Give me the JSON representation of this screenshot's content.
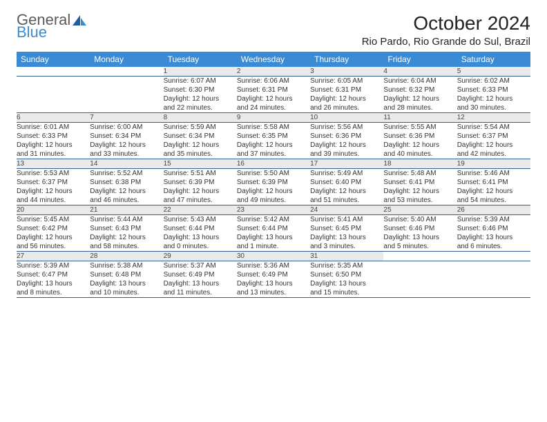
{
  "brand": {
    "part1": "General",
    "part2": "Blue"
  },
  "title": "October 2024",
  "location": "Rio Pardo, Rio Grande do Sul, Brazil",
  "colors": {
    "header_bg": "#3b8bd4",
    "header_text": "#ffffff",
    "daynum_bg": "#eaeaea",
    "border": "#2f5f8f",
    "logo_gray": "#5a5a5a",
    "logo_blue": "#3b8bd4"
  },
  "day_headers": [
    "Sunday",
    "Monday",
    "Tuesday",
    "Wednesday",
    "Thursday",
    "Friday",
    "Saturday"
  ],
  "weeks": [
    [
      {
        "n": "",
        "sr": "",
        "ss": "",
        "d1": "",
        "d2": ""
      },
      {
        "n": "",
        "sr": "",
        "ss": "",
        "d1": "",
        "d2": ""
      },
      {
        "n": "1",
        "sr": "Sunrise: 6:07 AM",
        "ss": "Sunset: 6:30 PM",
        "d1": "Daylight: 12 hours",
        "d2": "and 22 minutes."
      },
      {
        "n": "2",
        "sr": "Sunrise: 6:06 AM",
        "ss": "Sunset: 6:31 PM",
        "d1": "Daylight: 12 hours",
        "d2": "and 24 minutes."
      },
      {
        "n": "3",
        "sr": "Sunrise: 6:05 AM",
        "ss": "Sunset: 6:31 PM",
        "d1": "Daylight: 12 hours",
        "d2": "and 26 minutes."
      },
      {
        "n": "4",
        "sr": "Sunrise: 6:04 AM",
        "ss": "Sunset: 6:32 PM",
        "d1": "Daylight: 12 hours",
        "d2": "and 28 minutes."
      },
      {
        "n": "5",
        "sr": "Sunrise: 6:02 AM",
        "ss": "Sunset: 6:33 PM",
        "d1": "Daylight: 12 hours",
        "d2": "and 30 minutes."
      }
    ],
    [
      {
        "n": "6",
        "sr": "Sunrise: 6:01 AM",
        "ss": "Sunset: 6:33 PM",
        "d1": "Daylight: 12 hours",
        "d2": "and 31 minutes."
      },
      {
        "n": "7",
        "sr": "Sunrise: 6:00 AM",
        "ss": "Sunset: 6:34 PM",
        "d1": "Daylight: 12 hours",
        "d2": "and 33 minutes."
      },
      {
        "n": "8",
        "sr": "Sunrise: 5:59 AM",
        "ss": "Sunset: 6:34 PM",
        "d1": "Daylight: 12 hours",
        "d2": "and 35 minutes."
      },
      {
        "n": "9",
        "sr": "Sunrise: 5:58 AM",
        "ss": "Sunset: 6:35 PM",
        "d1": "Daylight: 12 hours",
        "d2": "and 37 minutes."
      },
      {
        "n": "10",
        "sr": "Sunrise: 5:56 AM",
        "ss": "Sunset: 6:36 PM",
        "d1": "Daylight: 12 hours",
        "d2": "and 39 minutes."
      },
      {
        "n": "11",
        "sr": "Sunrise: 5:55 AM",
        "ss": "Sunset: 6:36 PM",
        "d1": "Daylight: 12 hours",
        "d2": "and 40 minutes."
      },
      {
        "n": "12",
        "sr": "Sunrise: 5:54 AM",
        "ss": "Sunset: 6:37 PM",
        "d1": "Daylight: 12 hours",
        "d2": "and 42 minutes."
      }
    ],
    [
      {
        "n": "13",
        "sr": "Sunrise: 5:53 AM",
        "ss": "Sunset: 6:37 PM",
        "d1": "Daylight: 12 hours",
        "d2": "and 44 minutes."
      },
      {
        "n": "14",
        "sr": "Sunrise: 5:52 AM",
        "ss": "Sunset: 6:38 PM",
        "d1": "Daylight: 12 hours",
        "d2": "and 46 minutes."
      },
      {
        "n": "15",
        "sr": "Sunrise: 5:51 AM",
        "ss": "Sunset: 6:39 PM",
        "d1": "Daylight: 12 hours",
        "d2": "and 47 minutes."
      },
      {
        "n": "16",
        "sr": "Sunrise: 5:50 AM",
        "ss": "Sunset: 6:39 PM",
        "d1": "Daylight: 12 hours",
        "d2": "and 49 minutes."
      },
      {
        "n": "17",
        "sr": "Sunrise: 5:49 AM",
        "ss": "Sunset: 6:40 PM",
        "d1": "Daylight: 12 hours",
        "d2": "and 51 minutes."
      },
      {
        "n": "18",
        "sr": "Sunrise: 5:48 AM",
        "ss": "Sunset: 6:41 PM",
        "d1": "Daylight: 12 hours",
        "d2": "and 53 minutes."
      },
      {
        "n": "19",
        "sr": "Sunrise: 5:46 AM",
        "ss": "Sunset: 6:41 PM",
        "d1": "Daylight: 12 hours",
        "d2": "and 54 minutes."
      }
    ],
    [
      {
        "n": "20",
        "sr": "Sunrise: 5:45 AM",
        "ss": "Sunset: 6:42 PM",
        "d1": "Daylight: 12 hours",
        "d2": "and 56 minutes."
      },
      {
        "n": "21",
        "sr": "Sunrise: 5:44 AM",
        "ss": "Sunset: 6:43 PM",
        "d1": "Daylight: 12 hours",
        "d2": "and 58 minutes."
      },
      {
        "n": "22",
        "sr": "Sunrise: 5:43 AM",
        "ss": "Sunset: 6:44 PM",
        "d1": "Daylight: 13 hours",
        "d2": "and 0 minutes."
      },
      {
        "n": "23",
        "sr": "Sunrise: 5:42 AM",
        "ss": "Sunset: 6:44 PM",
        "d1": "Daylight: 13 hours",
        "d2": "and 1 minute."
      },
      {
        "n": "24",
        "sr": "Sunrise: 5:41 AM",
        "ss": "Sunset: 6:45 PM",
        "d1": "Daylight: 13 hours",
        "d2": "and 3 minutes."
      },
      {
        "n": "25",
        "sr": "Sunrise: 5:40 AM",
        "ss": "Sunset: 6:46 PM",
        "d1": "Daylight: 13 hours",
        "d2": "and 5 minutes."
      },
      {
        "n": "26",
        "sr": "Sunrise: 5:39 AM",
        "ss": "Sunset: 6:46 PM",
        "d1": "Daylight: 13 hours",
        "d2": "and 6 minutes."
      }
    ],
    [
      {
        "n": "27",
        "sr": "Sunrise: 5:39 AM",
        "ss": "Sunset: 6:47 PM",
        "d1": "Daylight: 13 hours",
        "d2": "and 8 minutes."
      },
      {
        "n": "28",
        "sr": "Sunrise: 5:38 AM",
        "ss": "Sunset: 6:48 PM",
        "d1": "Daylight: 13 hours",
        "d2": "and 10 minutes."
      },
      {
        "n": "29",
        "sr": "Sunrise: 5:37 AM",
        "ss": "Sunset: 6:49 PM",
        "d1": "Daylight: 13 hours",
        "d2": "and 11 minutes."
      },
      {
        "n": "30",
        "sr": "Sunrise: 5:36 AM",
        "ss": "Sunset: 6:49 PM",
        "d1": "Daylight: 13 hours",
        "d2": "and 13 minutes."
      },
      {
        "n": "31",
        "sr": "Sunrise: 5:35 AM",
        "ss": "Sunset: 6:50 PM",
        "d1": "Daylight: 13 hours",
        "d2": "and 15 minutes."
      },
      {
        "n": "",
        "sr": "",
        "ss": "",
        "d1": "",
        "d2": ""
      },
      {
        "n": "",
        "sr": "",
        "ss": "",
        "d1": "",
        "d2": ""
      }
    ]
  ]
}
